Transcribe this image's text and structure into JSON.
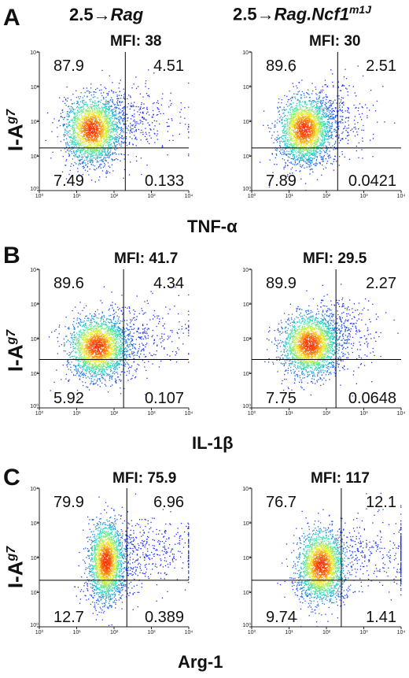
{
  "colors": {
    "low": "#1a2cff",
    "mid": "#22e0c0",
    "midhigh": "#f2f22a",
    "high": "#ff2a00"
  },
  "columns": {
    "left": {
      "prefix": "2.5",
      "arrow": "→",
      "name": "Rag",
      "sup": ""
    },
    "right": {
      "prefix": "2.5",
      "arrow": "→",
      "name": "Rag.Ncf1",
      "sup": "m1J"
    }
  },
  "y_axis_label": {
    "text": "I-A",
    "sup": "g7"
  },
  "chart_data": [
    {
      "panel": "A",
      "type": "scatter",
      "condition": "2.5→Rag",
      "xlabel": "TNF-α",
      "ylabel": "I-Ag7",
      "xscale": "log",
      "yscale": "log",
      "xlim": [
        1,
        10000
      ],
      "ylim": [
        1,
        10000
      ],
      "x_ticks": [
        "10⁰",
        "10¹",
        "10²",
        "10³",
        "10⁴"
      ],
      "y_ticks": [
        "10⁰",
        "10¹",
        "10²",
        "10³",
        "10⁴"
      ],
      "mfi": "MFI: 38",
      "quadrants": {
        "upper_left": "87.9",
        "upper_right": "4.51",
        "lower_left": "7.49",
        "lower_right": "0.133"
      },
      "x_gate": 200,
      "y_gate": 17,
      "population": {
        "center_x": 25,
        "center_y": 60,
        "spread_x": 0.35,
        "spread_y": 0.45,
        "tail_x": 1.0
      }
    },
    {
      "panel": "A",
      "type": "scatter",
      "condition": "2.5→Rag.Ncf1m1J",
      "xlabel": "TNF-α",
      "ylabel": "I-Ag7",
      "xscale": "log",
      "yscale": "log",
      "xlim": [
        1,
        10000
      ],
      "ylim": [
        1,
        10000
      ],
      "x_ticks": [
        "10⁰",
        "10¹",
        "10²",
        "10³",
        "10⁴"
      ],
      "y_ticks": [
        "10⁰",
        "10¹",
        "10²",
        "10³",
        "10⁴"
      ],
      "mfi": "MFI: 30",
      "quadrants": {
        "upper_left": "89.6",
        "upper_right": "2.51",
        "lower_left": "7.89",
        "lower_right": "0.0421"
      },
      "x_gate": 200,
      "y_gate": 17,
      "population": {
        "center_x": 25,
        "center_y": 60,
        "spread_x": 0.33,
        "spread_y": 0.45,
        "tail_x": 0.7
      }
    },
    {
      "panel": "B",
      "type": "scatter",
      "condition": "2.5→Rag",
      "xlabel": "IL-1β",
      "ylabel": "I-Ag7",
      "xscale": "log",
      "yscale": "log",
      "xlim": [
        1,
        10000
      ],
      "ylim": [
        1,
        10000
      ],
      "x_ticks": [
        "10⁰",
        "10¹",
        "10²",
        "10³",
        "10⁴"
      ],
      "y_ticks": [
        "10⁰",
        "10¹",
        "10²",
        "10³",
        "10⁴"
      ],
      "mfi": "MFI: 41.7",
      "quadrants": {
        "upper_left": "89.6",
        "upper_right": "4.34",
        "lower_left": "5.92",
        "lower_right": "0.107"
      },
      "x_gate": 180,
      "y_gate": 25,
      "population": {
        "center_x": 35,
        "center_y": 60,
        "spread_x": 0.38,
        "spread_y": 0.42,
        "tail_x": 1.0
      }
    },
    {
      "panel": "B",
      "type": "scatter",
      "condition": "2.5→Rag.Ncf1m1J",
      "xlabel": "IL-1β",
      "ylabel": "I-Ag7",
      "xscale": "log",
      "yscale": "log",
      "xlim": [
        1,
        10000
      ],
      "ylim": [
        1,
        10000
      ],
      "x_ticks": [
        "10⁰",
        "10¹",
        "10²",
        "10³",
        "10⁴"
      ],
      "y_ticks": [
        "10⁰",
        "10¹",
        "10²",
        "10³",
        "10⁴"
      ],
      "mfi": "MFI: 29.5",
      "quadrants": {
        "upper_left": "89.9",
        "upper_right": "2.27",
        "lower_left": "7.75",
        "lower_right": "0.0648"
      },
      "x_gate": 180,
      "y_gate": 25,
      "population": {
        "center_x": 35,
        "center_y": 70,
        "spread_x": 0.36,
        "spread_y": 0.42,
        "tail_x": 0.7
      }
    },
    {
      "panel": "C",
      "type": "scatter",
      "condition": "2.5→Rag",
      "xlabel": "Arg-1",
      "ylabel": "I-Ag7",
      "xscale": "log",
      "yscale": "log",
      "xlim": [
        1,
        10000
      ],
      "ylim": [
        1,
        10000
      ],
      "x_ticks": [
        "10⁰",
        "10¹",
        "10²",
        "10³",
        "10⁴"
      ],
      "y_ticks": [
        "10⁰",
        "10¹",
        "10²",
        "10³",
        "10⁴"
      ],
      "mfi": "MFI: 75.9",
      "quadrants": {
        "upper_left": "79.9",
        "upper_right": "6.96",
        "lower_left": "12.7",
        "lower_right": "0.389"
      },
      "x_gate": 220,
      "y_gate": 22,
      "population": {
        "center_x": 60,
        "center_y": 80,
        "spread_x": 0.22,
        "spread_y": 0.55,
        "tail_x": 1.2
      }
    },
    {
      "panel": "C",
      "type": "scatter",
      "condition": "2.5→Rag.Ncf1m1J",
      "xlabel": "Arg-1",
      "ylabel": "I-Ag7",
      "xscale": "log",
      "yscale": "log",
      "xlim": [
        1,
        10000
      ],
      "ylim": [
        1,
        10000
      ],
      "x_ticks": [
        "10⁰",
        "10¹",
        "10²",
        "10³",
        "10⁴"
      ],
      "y_ticks": [
        "10⁰",
        "10¹",
        "10²",
        "10³",
        "10⁴"
      ],
      "mfi": "MFI: 117",
      "quadrants": {
        "upper_left": "76.7",
        "upper_right": "12.1",
        "lower_left": "9.74",
        "lower_right": "1.41"
      },
      "x_gate": 250,
      "y_gate": 22,
      "population": {
        "center_x": 70,
        "center_y": 60,
        "spread_x": 0.3,
        "spread_y": 0.5,
        "tail_x": 2.0
      }
    }
  ],
  "panels": [
    {
      "letter": "A",
      "xlabel": "TNF-α"
    },
    {
      "letter": "B",
      "xlabel": "IL-1β"
    },
    {
      "letter": "C",
      "xlabel": "Arg-1"
    }
  ]
}
